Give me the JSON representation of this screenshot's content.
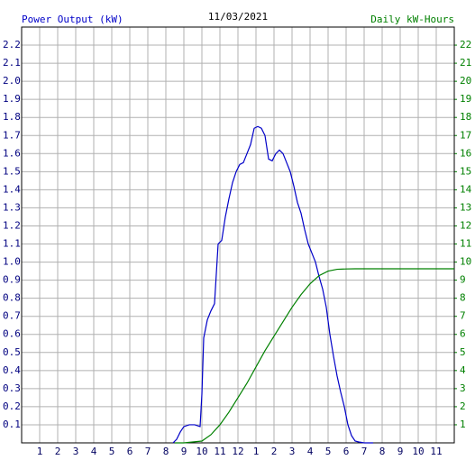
{
  "chart_data": {
    "type": "line",
    "title": "11/03/2021",
    "grid": true,
    "xlim": [
      0,
      24
    ],
    "xticks": [
      1,
      2,
      3,
      4,
      5,
      6,
      7,
      8,
      9,
      10,
      11,
      12,
      {
        "value": 13,
        "label": "1"
      },
      {
        "value": 14,
        "label": "2"
      },
      {
        "value": 15,
        "label": "3"
      },
      {
        "value": 16,
        "label": "4"
      },
      {
        "value": 17,
        "label": "5"
      },
      {
        "value": 18,
        "label": "6"
      },
      {
        "value": 19,
        "label": "7"
      },
      {
        "value": 20,
        "label": "8"
      },
      {
        "value": 21,
        "label": "9"
      },
      {
        "value": 22,
        "label": "10"
      },
      {
        "value": 23,
        "label": "11"
      }
    ],
    "ylim": [
      0,
      2.3
    ],
    "yticks": [
      0.1,
      0.2,
      0.3,
      0.4,
      0.5,
      0.6,
      0.7,
      0.8,
      0.9,
      {
        "value": 1,
        "label": "1.0"
      },
      1.1,
      1.2,
      1.3,
      1.4,
      1.5,
      1.6,
      1.7,
      1.8,
      1.9,
      {
        "value": 2,
        "label": "2.0"
      },
      2.1,
      2.2
    ],
    "y2lim": [
      0,
      23
    ],
    "y2ticks": [
      1,
      2,
      3,
      4,
      5,
      6,
      7,
      8,
      9,
      10,
      11,
      12,
      13,
      14,
      15,
      16,
      17,
      18,
      19,
      20,
      21,
      22
    ],
    "series": [
      {
        "name": "Power Output (kW)",
        "color": "#0000c8",
        "axis": "y",
        "x": [
          8.4,
          8.6,
          8.8,
          9.0,
          9.3,
          9.6,
          9.9,
          10.0,
          10.1,
          10.3,
          10.5,
          10.7,
          10.9,
          11.1,
          11.3,
          11.5,
          11.7,
          11.9,
          12.1,
          12.3,
          12.5,
          12.7,
          12.9,
          13.1,
          13.3,
          13.5,
          13.7,
          13.9,
          14.1,
          14.3,
          14.5,
          14.7,
          14.9,
          15.1,
          15.3,
          15.5,
          15.7,
          15.9,
          16.1,
          16.3,
          16.5,
          16.7,
          16.9,
          17.1,
          17.3,
          17.5,
          17.7,
          17.9,
          18.1,
          18.3,
          18.5,
          18.7,
          19.0,
          19.5
        ],
        "values": [
          0,
          0.02,
          0.06,
          0.09,
          0.1,
          0.1,
          0.09,
          0.27,
          0.58,
          0.68,
          0.73,
          0.77,
          1.1,
          1.12,
          1.25,
          1.35,
          1.44,
          1.5,
          1.54,
          1.55,
          1.6,
          1.65,
          1.74,
          1.75,
          1.74,
          1.7,
          1.57,
          1.56,
          1.6,
          1.62,
          1.6,
          1.55,
          1.5,
          1.42,
          1.33,
          1.27,
          1.18,
          1.1,
          1.05,
          1.0,
          0.92,
          0.85,
          0.75,
          0.6,
          0.48,
          0.37,
          0.28,
          0.2,
          0.1,
          0.04,
          0.01,
          0.005,
          0,
          0
        ]
      },
      {
        "name": "Daily kW-Hours",
        "color": "#008000",
        "axis": "y2",
        "x": [
          8.5,
          9,
          9.5,
          10,
          10.5,
          11,
          11.5,
          12,
          12.5,
          13,
          13.5,
          14,
          14.5,
          15,
          15.5,
          16,
          16.5,
          17,
          17.5,
          18,
          18.5,
          24
        ],
        "values": [
          0,
          0,
          0.05,
          0.1,
          0.45,
          1.0,
          1.7,
          2.5,
          3.3,
          4.2,
          5.1,
          5.9,
          6.7,
          7.5,
          8.2,
          8.8,
          9.25,
          9.5,
          9.6,
          9.62,
          9.63,
          9.63
        ]
      }
    ]
  }
}
